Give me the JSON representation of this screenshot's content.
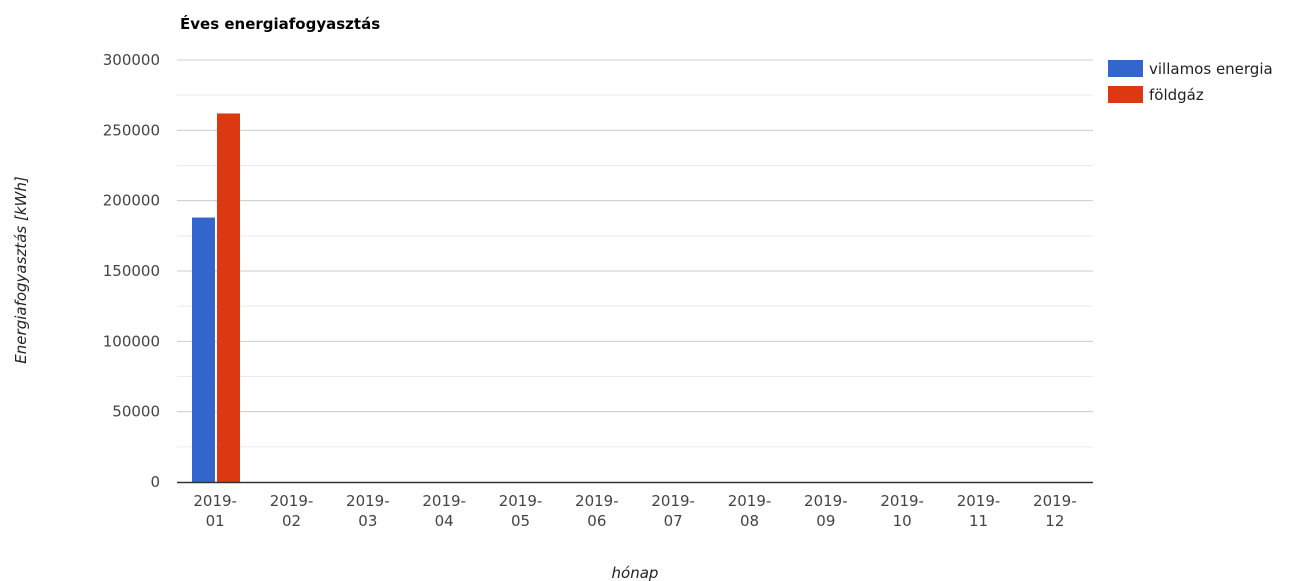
{
  "chart_data": {
    "type": "bar",
    "title": "Éves energiafogyasztás",
    "xlabel": "hónap",
    "ylabel": "Energiafogyasztás [kWh]",
    "categories": [
      [
        "2019-",
        "01"
      ],
      [
        "2019-",
        "02"
      ],
      [
        "2019-",
        "03"
      ],
      [
        "2019-",
        "04"
      ],
      [
        "2019-",
        "05"
      ],
      [
        "2019-",
        "06"
      ],
      [
        "2019-",
        "07"
      ],
      [
        "2019-",
        "08"
      ],
      [
        "2019-",
        "09"
      ],
      [
        "2019-",
        "10"
      ],
      [
        "2019-",
        "11"
      ],
      [
        "2019-",
        "12"
      ]
    ],
    "series": [
      {
        "name": "villamos energia",
        "color": "#3366cc",
        "values": [
          188000,
          0,
          0,
          0,
          0,
          0,
          0,
          0,
          0,
          0,
          0,
          0
        ]
      },
      {
        "name": "földgáz",
        "color": "#dc3912",
        "values": [
          262000,
          0,
          0,
          0,
          0,
          0,
          0,
          0,
          0,
          0,
          0,
          0
        ]
      }
    ],
    "ylim": [
      0,
      300000
    ],
    "yticks": [
      "0",
      "50000",
      "100000",
      "150000",
      "200000",
      "250000",
      "300000"
    ],
    "grid": true,
    "legend_position": "right"
  }
}
